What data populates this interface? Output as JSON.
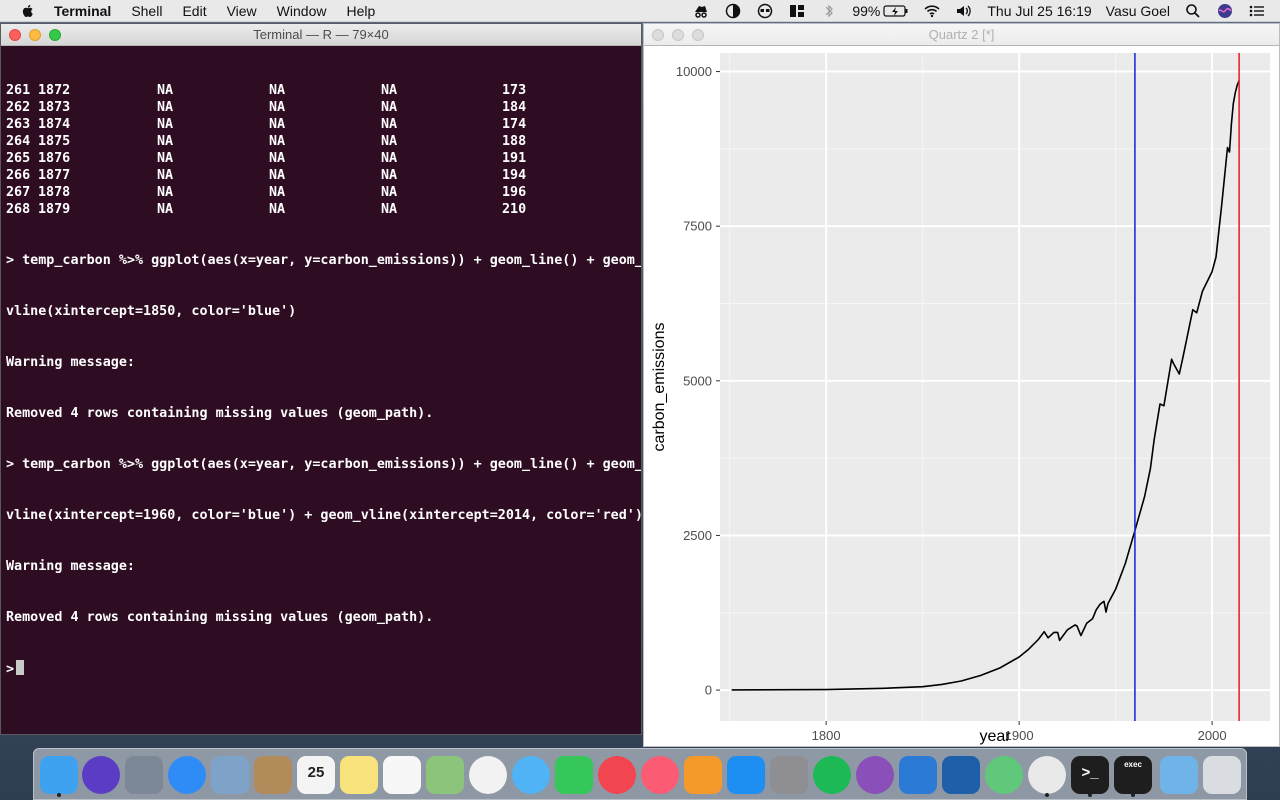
{
  "menubar": {
    "items": [
      "Terminal",
      "Shell",
      "Edit",
      "View",
      "Window",
      "Help"
    ],
    "battery": "99%",
    "datetime": "Thu Jul 25  16:19",
    "user": "Vasu Goel"
  },
  "terminal": {
    "title": "Terminal — R — 79×40",
    "table_rows": [
      [
        "261",
        "1872",
        "NA",
        "NA",
        "NA",
        "173"
      ],
      [
        "262",
        "1873",
        "NA",
        "NA",
        "NA",
        "184"
      ],
      [
        "263",
        "1874",
        "NA",
        "NA",
        "NA",
        "174"
      ],
      [
        "264",
        "1875",
        "NA",
        "NA",
        "NA",
        "188"
      ],
      [
        "265",
        "1876",
        "NA",
        "NA",
        "NA",
        "191"
      ],
      [
        "266",
        "1877",
        "NA",
        "NA",
        "NA",
        "194"
      ],
      [
        "267",
        "1878",
        "NA",
        "NA",
        "NA",
        "196"
      ],
      [
        "268",
        "1879",
        "NA",
        "NA",
        "NA",
        "210"
      ]
    ],
    "lines": [
      "> temp_carbon %>% ggplot(aes(x=year, y=carbon_emissions)) + geom_line() + geom_",
      "vline(xintercept=1850, color='blue')",
      "Warning message:",
      "Removed 4 rows containing missing values (geom_path).",
      "> temp_carbon %>% ggplot(aes(x=year, y=carbon_emissions)) + geom_line() + geom_",
      "vline(xintercept=1960, color='blue') + geom_vline(xintercept=2014, color='red')",
      "Warning message:",
      "Removed 4 rows containing missing values (geom_path)."
    ],
    "prompt": ">"
  },
  "quartz": {
    "title": "Quartz 2 [*]"
  },
  "chart_data": {
    "type": "line",
    "xlabel": "year",
    "ylabel": "carbon_emissions",
    "xlim": [
      1745,
      2030
    ],
    "ylim": [
      -500,
      10300
    ],
    "x_ticks": [
      1800,
      1900,
      2000
    ],
    "y_ticks": [
      0,
      2500,
      5000,
      7500,
      10000
    ],
    "x_tick_labels": [
      "1800",
      "1900",
      "2000"
    ],
    "y_tick_labels": [
      "0",
      "2500",
      "5000",
      "7500",
      "10000"
    ],
    "vlines": [
      {
        "x": 1960,
        "color": "#1f2fd6"
      },
      {
        "x": 2014,
        "color": "#e8262f"
      }
    ],
    "series": [
      {
        "color": "#000000",
        "x": [
          1751,
          1800,
          1830,
          1850,
          1860,
          1870,
          1880,
          1890,
          1900,
          1905,
          1910,
          1913,
          1915,
          1918,
          1920,
          1921,
          1925,
          1929,
          1930,
          1932,
          1935,
          1938,
          1940,
          1942,
          1944,
          1945,
          1946,
          1950,
          1955,
          1960,
          1965,
          1968,
          1970,
          1973,
          1975,
          1979,
          1980,
          1983,
          1985,
          1990,
          1992,
          1995,
          2000,
          2002,
          2005,
          2008,
          2009,
          2010,
          2011,
          2012,
          2013,
          2014
        ],
        "y": [
          3,
          8,
          28,
          54,
          91,
          147,
          236,
          357,
          534,
          663,
          819,
          943,
          845,
          932,
          932,
          803,
          975,
          1053,
          1036,
          881,
          1082,
          1152,
          1299,
          1390,
          1435,
          1260,
          1395,
          1630,
          2046,
          2577,
          3130,
          3580,
          4053,
          4625,
          4596,
          5350,
          5280,
          5110,
          5400,
          6150,
          6100,
          6450,
          6765,
          7000,
          7860,
          8770,
          8700,
          9150,
          9480,
          9660,
          9780,
          9855
        ]
      }
    ]
  },
  "dock": {
    "items": [
      {
        "icon": "finder-icon",
        "color": "#3fa2f0"
      },
      {
        "icon": "siri-icon",
        "color": "#5b3cc4"
      },
      {
        "icon": "launchpad-icon",
        "color": "#7d8896"
      },
      {
        "icon": "safari-icon",
        "color": "#2f8bf5"
      },
      {
        "icon": "mail-stamp-icon",
        "color": "#7fa2c8"
      },
      {
        "icon": "contacts-icon",
        "color": "#b38a5a"
      },
      {
        "icon": "calendar-icon",
        "color": "#f4f4f4",
        "text": "25"
      },
      {
        "icon": "notes-icon",
        "color": "#f7e27b"
      },
      {
        "icon": "reminders-icon",
        "color": "#f7f7f7"
      },
      {
        "icon": "maps-icon",
        "color": "#8bc47a"
      },
      {
        "icon": "photos-icon",
        "color": "#f2f2f2"
      },
      {
        "icon": "messages-icon",
        "color": "#4fb3f6"
      },
      {
        "icon": "facetime-icon",
        "color": "#35c759"
      },
      {
        "icon": "news-icon",
        "color": "#f3454f"
      },
      {
        "icon": "music-icon",
        "color": "#fb5c74"
      },
      {
        "icon": "books-icon",
        "color": "#f39a2b"
      },
      {
        "icon": "app-store-icon",
        "color": "#1f8ef2"
      },
      {
        "icon": "system-preferences-icon",
        "color": "#8e8e93"
      },
      {
        "icon": "spotify-icon",
        "color": "#1db954"
      },
      {
        "icon": "github-icon",
        "color": "#8a4fb8"
      },
      {
        "icon": "xcode-icon",
        "color": "#2b7bd6"
      },
      {
        "icon": "vscode-icon",
        "color": "#1d5fa8"
      },
      {
        "icon": "atom-icon",
        "color": "#5fc87a"
      },
      {
        "icon": "chrome-icon",
        "color": "#e9e9e9"
      },
      {
        "icon": "terminal-icon",
        "color": "#1e1e1e",
        "text": ">_"
      },
      {
        "icon": "exec-icon",
        "color": "#1e1e1e",
        "text": "exec"
      },
      {
        "icon": "downloads-folder-icon",
        "color": "#6fb4e8"
      },
      {
        "icon": "trash-icon",
        "color": "#d9dde2"
      }
    ]
  }
}
